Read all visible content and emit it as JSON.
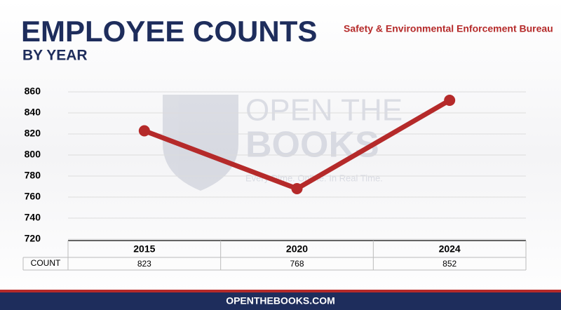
{
  "chart_data": {
    "type": "line",
    "title": "EMPLOYEE COUNTS",
    "subtitle": "BY YEAR",
    "agency": "Safety & Environmental Enforcement Bureau",
    "categories": [
      "2015",
      "2020",
      "2024"
    ],
    "values": [
      823,
      768,
      852
    ],
    "color": "#b52a2a",
    "ylim": [
      720,
      860
    ],
    "yticks": [
      720,
      740,
      760,
      780,
      800,
      820,
      840,
      860
    ],
    "grid": true,
    "table_row_label": "COUNT",
    "watermark": {
      "line1": "OPEN THE",
      "line2": "BOOKS",
      "tagline": "Every Dime. Online. In Real Time."
    },
    "footer": "OPENTHEBOOKS.COM"
  }
}
